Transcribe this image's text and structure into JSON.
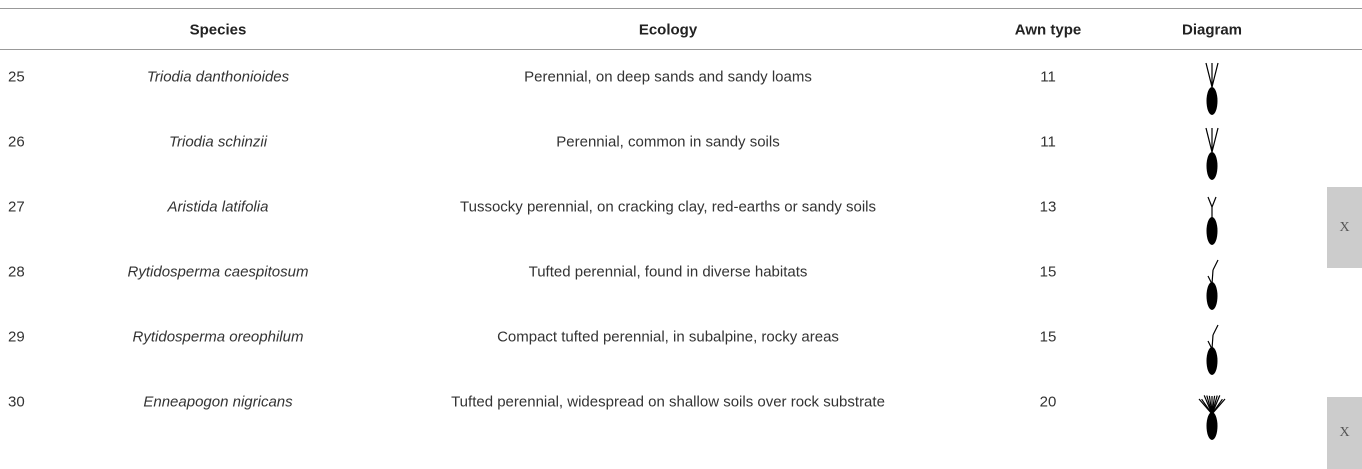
{
  "table": {
    "header": [
      "Species",
      "Ecology",
      "Awn type",
      "Diagram"
    ],
    "rows": [
      [
        25,
        "Triodia danthonioides",
        "Perennial, on deep sands and sandy loams",
        11
      ],
      [
        26,
        "Triodia schinzii",
        "Perennial, common in sandy soils",
        11
      ],
      [
        27,
        "Aristida latifolia",
        "Tussocky perennial, on cracking clay, red-earths or sandy soils",
        13
      ],
      [
        28,
        "Rytidosperma caespitosum",
        "Tufted perennial, found in diverse habitats",
        15
      ],
      [
        29,
        "Rytidosperma oreophilum",
        "Compact tufted perennial, in subalpine, rocky areas",
        15
      ],
      [
        30,
        "Enneapogon nigricans",
        "Tufted perennial, widespread on shallow soils over rock substrate",
        20
      ]
    ]
  },
  "buttons": [
    "X",
    "X"
  ]
}
